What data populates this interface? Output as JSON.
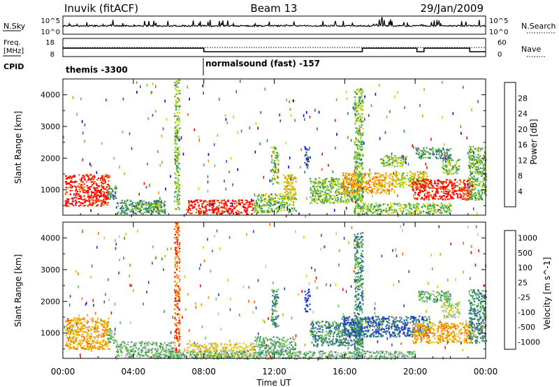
{
  "header": {
    "station": "Inuvik (fitACF)",
    "beam": "Beam 13",
    "date": "29/Jan/2009"
  },
  "summary": {
    "nsky_label": "N.Sky",
    "nsky_ticks": [
      "10^5",
      "10^0"
    ],
    "nsearch_label": "N.Search",
    "freq_label_1": "Freq.",
    "freq_label_2": "[MHz]",
    "freq_ticks": [
      "18",
      "8"
    ],
    "nave_label": "Nave",
    "nave_ticks": [
      "60",
      "0"
    ],
    "cpid_label": "CPID",
    "cpid_segments": [
      {
        "label": "themis -3300",
        "start": 0,
        "end": 8
      },
      {
        "label": "normalsound (fast) -157",
        "start": 8,
        "end": 24
      }
    ]
  },
  "time_axis": {
    "label": "Time UT",
    "ticks": [
      "00:00",
      "04:00",
      "08:00",
      "12:00",
      "16:00",
      "20:00",
      "00:00"
    ],
    "range_hours": [
      0,
      24
    ]
  },
  "colors": {
    "power": [
      "#0000ff",
      "#3755a6",
      "#2e8b57",
      "#63c13f",
      "#d6d600",
      "#ff9400",
      "#ff5a00",
      "#ff0000"
    ],
    "velocity": [
      "#1f3ccf",
      "#3355a6",
      "#2f8f63",
      "#64c44a",
      "#bdbdbd",
      "#d4d400",
      "#ffa000",
      "#ff6a00",
      "#ff0000"
    ]
  },
  "chart_data": [
    {
      "type": "heatmap",
      "ylabel": "Slant Range [km]",
      "ylim": [
        200,
        4500
      ],
      "yticks": [
        1000,
        2000,
        3000,
        4000
      ],
      "xlim": [
        0,
        24
      ],
      "colorbar": {
        "label": "Power [dB]",
        "ticks": [
          "4",
          "8",
          "12",
          "16",
          "20",
          "24",
          "28"
        ],
        "range": [
          0,
          32
        ]
      },
      "regions": [
        {
          "t0": 0.1,
          "t1": 2.6,
          "r0": 500,
          "r1": 1500,
          "level": 7
        },
        {
          "t0": 2.5,
          "t1": 3.0,
          "r0": 700,
          "r1": 1150,
          "level": 2
        },
        {
          "t0": 3.0,
          "t1": 5.8,
          "r0": 250,
          "r1": 700,
          "level": 2
        },
        {
          "t0": 4.0,
          "t1": 5.5,
          "r0": 350,
          "r1": 600,
          "level": 3
        },
        {
          "t0": 6.3,
          "t1": 6.6,
          "r0": 400,
          "r1": 4500,
          "level": 3
        },
        {
          "t0": 7.0,
          "t1": 10.8,
          "r0": 250,
          "r1": 700,
          "level": 7
        },
        {
          "t0": 10.8,
          "t1": 13.2,
          "r0": 300,
          "r1": 900,
          "level": 3
        },
        {
          "t0": 11.8,
          "t1": 12.2,
          "r0": 1200,
          "r1": 2400,
          "level": 3
        },
        {
          "t0": 12.5,
          "t1": 13.2,
          "r0": 700,
          "r1": 1500,
          "level": 4
        },
        {
          "t0": 13.7,
          "t1": 14.0,
          "r0": 1700,
          "r1": 2400,
          "level": 1
        },
        {
          "t0": 14.0,
          "t1": 17.0,
          "r0": 600,
          "r1": 1400,
          "level": 3
        },
        {
          "t0": 15.8,
          "t1": 18.8,
          "r0": 900,
          "r1": 1550,
          "level": 5
        },
        {
          "t0": 16.5,
          "t1": 17.0,
          "r0": 200,
          "r1": 4200,
          "level": 3
        },
        {
          "t0": 18.8,
          "t1": 20.8,
          "r0": 1100,
          "r1": 1600,
          "level": 4
        },
        {
          "t0": 19.8,
          "t1": 23.2,
          "r0": 700,
          "r1": 1350,
          "level": 7
        },
        {
          "t0": 20.0,
          "t1": 22.0,
          "r0": 2000,
          "r1": 2350,
          "level": 2
        },
        {
          "t0": 21.5,
          "t1": 22.5,
          "r0": 1500,
          "r1": 2000,
          "level": 3
        },
        {
          "t0": 18.0,
          "t1": 19.5,
          "r0": 1750,
          "r1": 2100,
          "level": 3
        },
        {
          "t0": 23.0,
          "t1": 24.0,
          "r0": 700,
          "r1": 2400,
          "level": 3
        },
        {
          "t0": 17.0,
          "t1": 22.0,
          "r0": 250,
          "r1": 600,
          "level": 3
        }
      ]
    },
    {
      "type": "heatmap",
      "ylabel": "Slant Range [km]",
      "ylim": [
        200,
        4500
      ],
      "yticks": [
        1000,
        2000,
        3000,
        4000
      ],
      "xlim": [
        0,
        24
      ],
      "colorbar": {
        "label": "Velocity [m s^-1]",
        "ticks": [
          "1000",
          "500",
          "100",
          "25",
          "-25",
          "-100",
          "-500",
          "-1000"
        ],
        "range": [
          -1000,
          1000
        ]
      },
      "regions": [
        {
          "t0": 0.1,
          "t1": 2.6,
          "r0": 500,
          "r1": 1500,
          "level": 6
        },
        {
          "t0": 2.5,
          "t1": 3.0,
          "r0": 700,
          "r1": 1150,
          "level": 3
        },
        {
          "t0": 3.0,
          "t1": 6.3,
          "r0": 250,
          "r1": 750,
          "level": 3
        },
        {
          "t0": 6.3,
          "t1": 6.6,
          "r0": 400,
          "r1": 4500,
          "level": 7
        },
        {
          "t0": 7.0,
          "t1": 10.8,
          "r0": 250,
          "r1": 700,
          "level": 5
        },
        {
          "t0": 10.8,
          "t1": 13.2,
          "r0": 300,
          "r1": 900,
          "level": 3
        },
        {
          "t0": 11.8,
          "t1": 12.2,
          "r0": 1200,
          "r1": 2400,
          "level": 2
        },
        {
          "t0": 13.7,
          "t1": 14.0,
          "r0": 1700,
          "r1": 2400,
          "level": 0
        },
        {
          "t0": 14.0,
          "t1": 17.0,
          "r0": 600,
          "r1": 1400,
          "level": 2
        },
        {
          "t0": 15.8,
          "t1": 20.8,
          "r0": 900,
          "r1": 1550,
          "level": 1
        },
        {
          "t0": 16.5,
          "t1": 17.0,
          "r0": 200,
          "r1": 4200,
          "level": 2
        },
        {
          "t0": 19.8,
          "t1": 23.2,
          "r0": 700,
          "r1": 1350,
          "level": 6
        },
        {
          "t0": 20.0,
          "t1": 22.0,
          "r0": 2000,
          "r1": 2350,
          "level": 3
        },
        {
          "t0": 21.5,
          "t1": 22.5,
          "r0": 1500,
          "r1": 2000,
          "level": 4
        },
        {
          "t0": 23.0,
          "t1": 24.0,
          "r0": 700,
          "r1": 2400,
          "level": 2
        },
        {
          "t0": 5.0,
          "t1": 20.0,
          "r0": 200,
          "r1": 450,
          "level": 3
        }
      ]
    }
  ]
}
